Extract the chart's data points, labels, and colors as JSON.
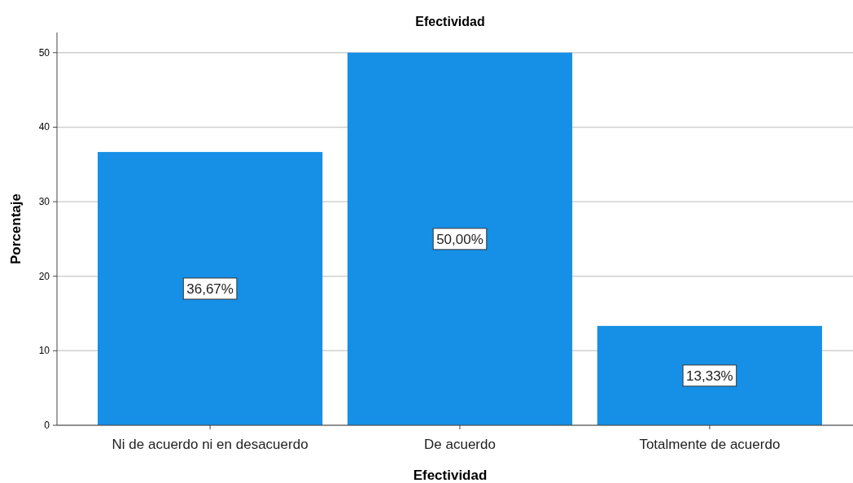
{
  "chart_data": {
    "type": "bar",
    "title": "Efectividad",
    "xlabel": "Efectividad",
    "ylabel": "Porcentaje",
    "categories": [
      "Ni de acuerdo ni en desacuerdo",
      "De acuerdo",
      "Totalmente de acuerdo"
    ],
    "values": [
      36.67,
      50,
      13.33
    ],
    "value_labels": [
      "36,67%",
      "50,00%",
      "13,33%"
    ],
    "color": "#1590e6",
    "ylim": [
      0,
      52.7
    ],
    "yticks": [
      0,
      10,
      20,
      30,
      40,
      50
    ],
    "grid": "y"
  }
}
